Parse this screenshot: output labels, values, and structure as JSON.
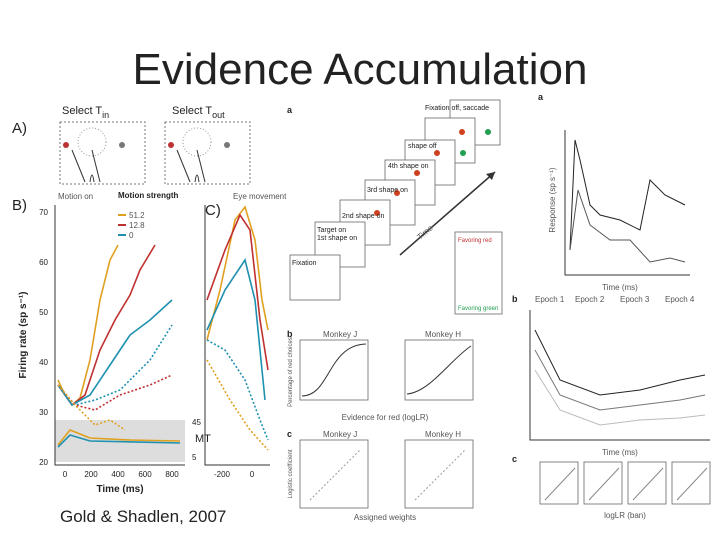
{
  "title": "Evidence Accumulation",
  "citation": "Gold & Shadlen, 2007",
  "left_figure": {
    "panel_labels": [
      "A)",
      "B)",
      "C)"
    ],
    "select_in": {
      "text": "Select T",
      "sub": "in"
    },
    "select_out": {
      "text": "Select T",
      "sub": "out"
    },
    "motion_on": "Motion on",
    "eye_movement": "Eye movement",
    "legend_title": "Motion strength",
    "legend": [
      "51.2",
      "12.8",
      "0"
    ],
    "y_label": "Firing rate (sp s⁻¹)",
    "y_ticks": [
      "70",
      "60",
      "50",
      "40",
      "30",
      "20"
    ],
    "x_label": "Time (ms)",
    "x_ticks": [
      "0",
      "200",
      "400",
      "600",
      "800"
    ],
    "x_ticks_c": [
      "-200",
      "0"
    ],
    "mt_label": "MT",
    "mt_ticks": [
      "45",
      "5"
    ]
  },
  "middle_figure": {
    "panel_labels": [
      "a",
      "b",
      "c"
    ],
    "steps": [
      "Fixation",
      "Target on",
      "1st shape on",
      "2nd shape on",
      "3rd shape on",
      "4th shape on",
      "shape off"
    ],
    "top_note": "Fixation off, saccade",
    "arrow_label": "Time",
    "legend_top": "Favoring red",
    "legend_bottom": "Favoring green",
    "monkeys": [
      "Monkey J",
      "Monkey H"
    ],
    "b_x_label": "Evidence for red (logLR)",
    "b_y_label": "Percentage of red choices",
    "c_x_label": "Assigned weights",
    "c_y_label": "Logistic coefficient"
  },
  "right_figure": {
    "panel_labels": [
      "a",
      "b",
      "c"
    ],
    "a_x_label": "Time (ms)",
    "a_y_label": "Response (sp s⁻¹)",
    "epochs": [
      "Epoch 1",
      "Epoch 2",
      "Epoch 3",
      "Epoch 4"
    ],
    "b_x_label": "Time (ms)",
    "c_x_label": "logLR (ban)"
  }
}
